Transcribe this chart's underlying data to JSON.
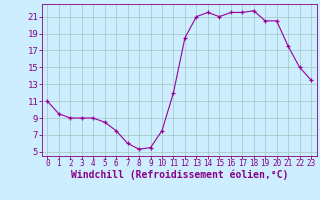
{
  "x": [
    0,
    1,
    2,
    3,
    4,
    5,
    6,
    7,
    8,
    9,
    10,
    11,
    12,
    13,
    14,
    15,
    16,
    17,
    18,
    19,
    20,
    21,
    22,
    23
  ],
  "y": [
    11.0,
    9.5,
    9.0,
    9.0,
    9.0,
    8.5,
    7.5,
    6.0,
    5.3,
    5.5,
    7.5,
    12.0,
    18.5,
    21.0,
    21.5,
    21.0,
    21.5,
    21.5,
    21.7,
    20.5,
    20.5,
    17.5,
    15.0,
    13.5
  ],
  "xlim": [
    -0.5,
    23.5
  ],
  "ylim": [
    4.5,
    22.5
  ],
  "yticks": [
    5,
    7,
    9,
    11,
    13,
    15,
    17,
    19,
    21
  ],
  "xticks": [
    0,
    1,
    2,
    3,
    4,
    5,
    6,
    7,
    8,
    9,
    10,
    11,
    12,
    13,
    14,
    15,
    16,
    17,
    18,
    19,
    20,
    21,
    22,
    23
  ],
  "xlabel": "Windchill (Refroidissement éolien,°C)",
  "line_color": "#990099",
  "marker": "+",
  "bg_color": "#cceeff",
  "grid_color": "#aacccc",
  "text_color": "#880088",
  "tick_color": "#880088",
  "xlabel_fontsize": 7.0,
  "ytick_fontsize": 6.5,
  "xtick_fontsize": 5.5
}
